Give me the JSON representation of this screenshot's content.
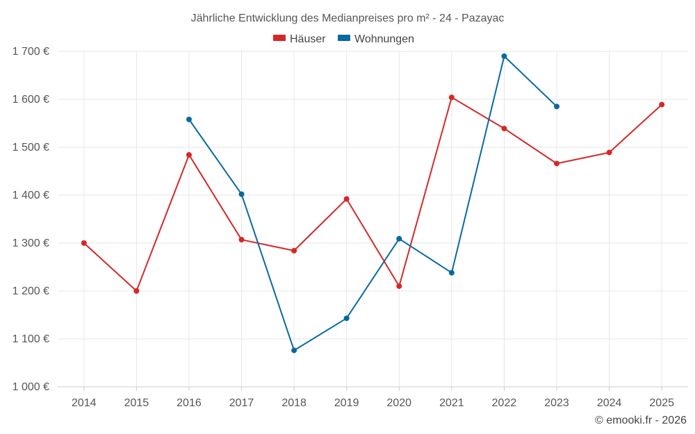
{
  "chart_data": {
    "type": "line",
    "title": "Jährliche Entwicklung des Medianpreises pro m² - 24 - Pazayac",
    "categories": [
      "2014",
      "2015",
      "2016",
      "2017",
      "2018",
      "2019",
      "2020",
      "2021",
      "2022",
      "2023",
      "2024",
      "2025"
    ],
    "ylim": [
      1000,
      1700
    ],
    "yticks": [
      1000,
      1100,
      1200,
      1300,
      1400,
      1500,
      1600,
      1700
    ],
    "ytick_labels": [
      "1 000 €",
      "1 100 €",
      "1 200 €",
      "1 300 €",
      "1 400 €",
      "1 500 €",
      "1 600 €",
      "1 700 €"
    ],
    "series": [
      {
        "name": "Häuser",
        "color": "#d62728",
        "values": [
          1300,
          1200,
          1484,
          1307,
          1284,
          1392,
          1210,
          1604,
          1539,
          1466,
          1489,
          1589
        ]
      },
      {
        "name": "Wohnungen",
        "color": "#0868a3",
        "values": [
          null,
          null,
          1558,
          1402,
          1076,
          1143,
          1309,
          1238,
          1690,
          1585,
          null,
          null
        ]
      }
    ],
    "grid": true,
    "legend": "top-center"
  },
  "credit": "© emooki.fr - 2026"
}
